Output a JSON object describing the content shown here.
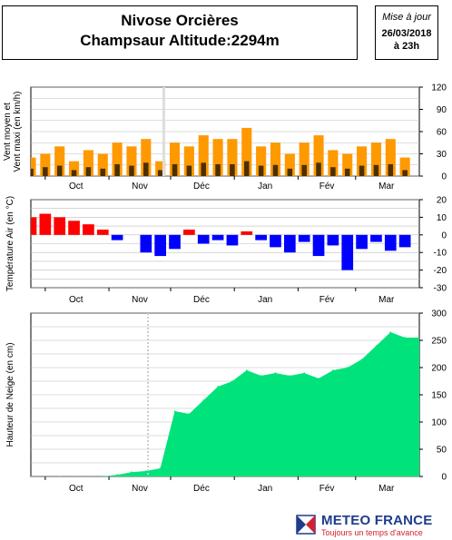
{
  "header": {
    "title_line1": "Nivose Orcières",
    "title_line2": "Champsaur Altitude:2294m",
    "update_label": "Mise à jour",
    "update_date": "26/03/2018",
    "update_time": "à 23h"
  },
  "brand": {
    "name": "METEO FRANCE",
    "tagline": "Toujours un temps d'avance",
    "color_blue": "#1e3c8c",
    "color_red": "#d4202f"
  },
  "chart_data": [
    {
      "type": "bar",
      "ylabel": "Vent moyen et Vent maxi (en km/h)",
      "ylabel_lines": [
        "Vent moyen et",
        "Vent maxi (en km/h)"
      ],
      "month_labels": [
        "Oct",
        "Nov",
        "Déc",
        "Jan",
        "Fév",
        "Mar"
      ],
      "y_ticks": [
        0,
        30,
        60,
        90,
        120
      ],
      "ylim": [
        0,
        120
      ],
      "grid": true,
      "colors": {
        "max": "#ff9900",
        "mean": "#4a3000"
      },
      "gap_marker": true,
      "series": [
        {
          "name": "Vent maxi",
          "x": [
            "09-24",
            "10-01",
            "10-08",
            "10-15",
            "10-22",
            "10-29",
            "11-05",
            "11-12",
            "11-19",
            "11-26",
            "12-03",
            "12-10",
            "12-17",
            "12-24",
            "12-31",
            "01-07",
            "01-14",
            "01-21",
            "01-28",
            "02-04",
            "02-11",
            "02-18",
            "02-25",
            "03-04",
            "03-11",
            "03-18",
            "03-25"
          ],
          "values": [
            25,
            30,
            40,
            20,
            35,
            30,
            45,
            40,
            50,
            20,
            45,
            40,
            55,
            50,
            50,
            65,
            40,
            45,
            30,
            45,
            55,
            35,
            30,
            40,
            45,
            50,
            25
          ]
        },
        {
          "name": "Vent moyen",
          "x": [
            "09-24",
            "10-01",
            "10-08",
            "10-15",
            "10-22",
            "10-29",
            "11-05",
            "11-12",
            "11-19",
            "11-26",
            "12-03",
            "12-10",
            "12-17",
            "12-24",
            "12-31",
            "01-07",
            "01-14",
            "01-21",
            "01-28",
            "02-04",
            "02-11",
            "02-18",
            "02-25",
            "03-04",
            "03-11",
            "03-18",
            "03-25"
          ],
          "values": [
            10,
            12,
            14,
            8,
            12,
            10,
            16,
            14,
            18,
            8,
            16,
            14,
            18,
            16,
            16,
            20,
            14,
            15,
            10,
            15,
            18,
            12,
            10,
            14,
            15,
            16,
            8
          ]
        }
      ]
    },
    {
      "type": "bar",
      "ylabel": "Température Air (en °C)",
      "month_labels": [
        "Oct",
        "Nov",
        "Déc",
        "Jan",
        "Fév",
        "Mar"
      ],
      "y_ticks": [
        -30,
        -20,
        -10,
        0,
        10,
        20
      ],
      "ylim": [
        -30,
        20
      ],
      "grid": true,
      "colors": {
        "positive": "#ff0000",
        "negative": "#0000ff"
      },
      "series": [
        {
          "name": "Température Air",
          "x": [
            "09-24",
            "10-01",
            "10-08",
            "10-15",
            "10-22",
            "10-29",
            "11-05",
            "11-12",
            "11-19",
            "11-26",
            "12-03",
            "12-10",
            "12-17",
            "12-24",
            "12-31",
            "01-07",
            "01-14",
            "01-21",
            "01-28",
            "02-04",
            "02-11",
            "02-18",
            "02-25",
            "03-04",
            "03-11",
            "03-18",
            "03-25"
          ],
          "values": [
            10,
            12,
            10,
            8,
            6,
            3,
            -3,
            0,
            -10,
            -12,
            -8,
            3,
            -5,
            -3,
            -6,
            2,
            -3,
            -7,
            -10,
            -4,
            -12,
            -6,
            -20,
            -8,
            -4,
            -9,
            -7
          ]
        }
      ]
    },
    {
      "type": "area",
      "ylabel": "Hauteur de Neige (en cm)",
      "month_labels": [
        "Oct",
        "Nov",
        "Déc",
        "Jan",
        "Fév",
        "Mar"
      ],
      "y_ticks": [
        0,
        50,
        100,
        150,
        200,
        250,
        300
      ],
      "ylim": [
        0,
        300
      ],
      "grid": true,
      "colors": {
        "fill": "#00e37a"
      },
      "gap_marker": true,
      "series": [
        {
          "name": "Hauteur de Neige",
          "x": [
            "09-24",
            "10-01",
            "10-08",
            "10-15",
            "10-22",
            "10-29",
            "11-05",
            "11-12",
            "11-19",
            "11-26",
            "12-03",
            "12-10",
            "12-17",
            "12-24",
            "12-31",
            "01-07",
            "01-14",
            "01-21",
            "01-28",
            "02-04",
            "02-11",
            "02-18",
            "02-25",
            "03-04",
            "03-11",
            "03-18",
            "03-25"
          ],
          "values": [
            0,
            0,
            0,
            0,
            0,
            0,
            3,
            8,
            10,
            15,
            120,
            115,
            140,
            165,
            175,
            195,
            185,
            190,
            185,
            190,
            180,
            195,
            200,
            215,
            240,
            265,
            255
          ]
        }
      ]
    }
  ]
}
